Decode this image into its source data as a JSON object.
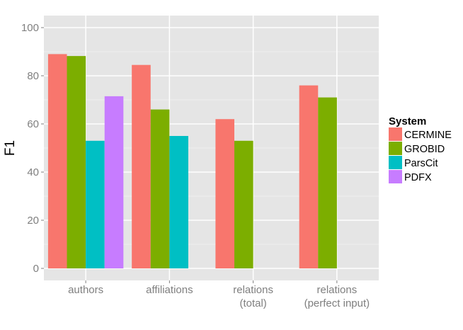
{
  "chart_data": {
    "type": "bar",
    "title": "",
    "xlabel": "",
    "ylabel": "F1",
    "ylim": [
      0,
      100
    ],
    "yticks": [
      0,
      20,
      40,
      60,
      80,
      100
    ],
    "grid": true,
    "legend_position": "right",
    "legend_title": "System",
    "categories": [
      [
        "authors"
      ],
      [
        "affiliations"
      ],
      [
        "relations",
        "(total)"
      ],
      [
        "relations",
        "(perfect input)"
      ]
    ],
    "series": [
      {
        "name": "CERMINE",
        "color": "#F8766D",
        "values": [
          89,
          84.5,
          62,
          76
        ]
      },
      {
        "name": "GROBID",
        "color": "#7CAE00",
        "values": [
          88.2,
          66,
          53,
          71
        ]
      },
      {
        "name": "ParsCit",
        "color": "#00BFC4",
        "values": [
          53,
          55,
          0,
          0
        ]
      },
      {
        "name": "PDFX",
        "color": "#C77CFF",
        "values": [
          71.5,
          0,
          0,
          0
        ]
      }
    ]
  }
}
